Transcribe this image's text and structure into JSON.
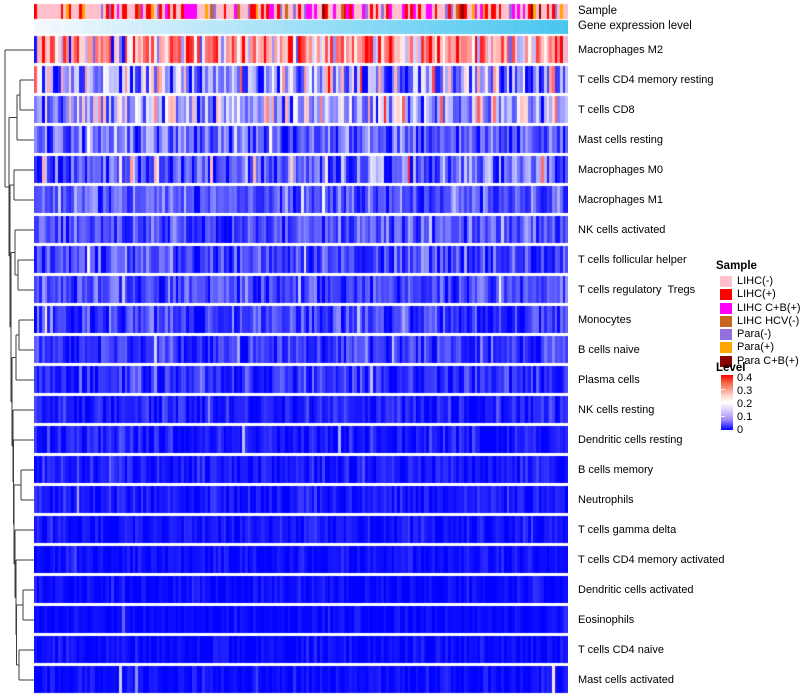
{
  "chart_data": {
    "type": "heatmap",
    "title": "",
    "description": "Immune cell fraction heatmap (CIBERSORT-style): rows are immune cell types, columns are ~200 unlabeled tumor/paratumor samples, row clustering dendrogram on the left.",
    "n_samples": 200,
    "x_axis": {
      "label": "",
      "tick_labels_shown": false
    },
    "top_annotations": [
      {
        "label": "Sample",
        "type": "categorical",
        "categories": [
          {
            "label": "LIHC(-)",
            "color": "#FFC0CB",
            "approx_fraction": 0.5
          },
          {
            "label": "LIHC(+)",
            "color": "#FF0000",
            "approx_fraction": 0.19
          },
          {
            "label": "LIHC C+B(+)",
            "color": "#FF00FF",
            "approx_fraction": 0.12
          },
          {
            "label": "LIHC HCV(-)",
            "color": "#C8661E",
            "approx_fraction": 0.04
          },
          {
            "label": "Para(-)",
            "color": "#9470DB",
            "approx_fraction": 0.07
          },
          {
            "label": "Para(+)",
            "color": "#FFA500",
            "approx_fraction": 0.05
          },
          {
            "label": "Para C+B(+)",
            "color": "#8B0000",
            "approx_fraction": 0.03
          }
        ]
      },
      {
        "label": "Gene expression level",
        "type": "continuous",
        "low_color": "#F4F9FD",
        "high_color": "#49C6F0",
        "order": "increasing from left to right"
      }
    ],
    "colormap": {
      "legend_title": "Level",
      "domain": [
        0,
        0.4
      ],
      "colors": [
        "#0000FF",
        "#FFFFFF",
        "#FF0000"
      ],
      "ticks": [
        "0.4",
        "0.3",
        "0.2",
        "0.1",
        "0"
      ]
    },
    "rows": [
      {
        "label": "Macrophages M2",
        "mean_level": 0.26,
        "sd": 0.09,
        "spike_p": 0.03,
        "spike_amt": 0.12
      },
      {
        "label": "T cells CD4 memory resting",
        "mean_level": 0.12,
        "sd": 0.1,
        "spike_p": 0.02,
        "spike_amt": 0.15
      },
      {
        "label": "T cells CD8",
        "mean_level": 0.135,
        "sd": 0.075,
        "spike_p": 0.03,
        "spike_amt": 0.15
      },
      {
        "label": "Mast cells resting",
        "mean_level": 0.075,
        "sd": 0.05,
        "spike_p": 0.01,
        "spike_amt": 0.15
      },
      {
        "label": "Macrophages M0",
        "mean_level": 0.07,
        "sd": 0.055,
        "spike_p": 0.04,
        "spike_amt": 0.25
      },
      {
        "label": "Macrophages M1",
        "mean_level": 0.065,
        "sd": 0.04,
        "spike_p": 0.01,
        "spike_amt": 0.1
      },
      {
        "label": "NK cells activated",
        "mean_level": 0.06,
        "sd": 0.04,
        "spike_p": 0.01,
        "spike_amt": 0.1
      },
      {
        "label": "T cells follicular helper",
        "mean_level": 0.055,
        "sd": 0.038,
        "spike_p": 0.01,
        "spike_amt": 0.08
      },
      {
        "label": "T cells regulatory  Tregs",
        "mean_level": 0.055,
        "sd": 0.035,
        "spike_p": 0.01,
        "spike_amt": 0.08
      },
      {
        "label": "Monocytes",
        "mean_level": 0.045,
        "sd": 0.035,
        "spike_p": 0.02,
        "spike_amt": 0.15
      },
      {
        "label": "B cells naive",
        "mean_level": 0.04,
        "sd": 0.032,
        "spike_p": 0.01,
        "spike_amt": 0.12
      },
      {
        "label": "Plasma cells",
        "mean_level": 0.035,
        "sd": 0.03,
        "spike_p": 0.01,
        "spike_amt": 0.1
      },
      {
        "label": "NK cells resting",
        "mean_level": 0.022,
        "sd": 0.022,
        "spike_p": 0.008,
        "spike_amt": 0.1
      },
      {
        "label": "Dendritic cells resting",
        "mean_level": 0.022,
        "sd": 0.022,
        "spike_p": 0.008,
        "spike_amt": 0.1
      },
      {
        "label": "B cells memory",
        "mean_level": 0.02,
        "sd": 0.02,
        "spike_p": 0.006,
        "spike_amt": 0.1
      },
      {
        "label": "Neutrophils",
        "mean_level": 0.02,
        "sd": 0.018,
        "spike_p": 0.006,
        "spike_amt": 0.08
      },
      {
        "label": "T cells gamma delta",
        "mean_level": 0.015,
        "sd": 0.016,
        "spike_p": 0.005,
        "spike_amt": 0.08
      },
      {
        "label": "T cells CD4 memory activated",
        "mean_level": 0.012,
        "sd": 0.013,
        "spike_p": 0.005,
        "spike_amt": 0.08
      },
      {
        "label": "Dendritic cells activated",
        "mean_level": 0.01,
        "sd": 0.012,
        "spike_p": 0.005,
        "spike_amt": 0.08
      },
      {
        "label": "Eosinophils",
        "mean_level": 0.008,
        "sd": 0.01,
        "spike_p": 0.004,
        "spike_amt": 0.06
      },
      {
        "label": "T cells CD4 naive",
        "mean_level": 0.008,
        "sd": 0.012,
        "spike_p": 0.004,
        "spike_amt": 0.2
      },
      {
        "label": "Mast cells activated",
        "mean_level": 0.01,
        "sd": 0.012,
        "spike_p": 0.006,
        "spike_amt": 0.2
      }
    ]
  }
}
